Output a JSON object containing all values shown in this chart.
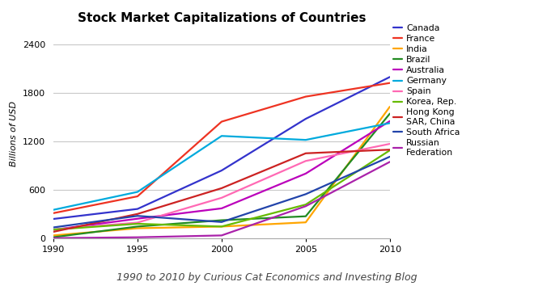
{
  "title": "Stock Market Capitalizations of Countries",
  "subtitle": "1990 to 2010 by Curious Cat Economics and Investing Blog",
  "ylabel": "Billions of USD",
  "years": [
    1990,
    1995,
    2000,
    2005,
    2010
  ],
  "series": [
    {
      "name": "Canada",
      "color": "#3333CC",
      "values": [
        242,
        366,
        842,
        1482,
        2000
      ]
    },
    {
      "name": "France",
      "color": "#EE3322",
      "values": [
        314,
        522,
        1447,
        1757,
        1926
      ]
    },
    {
      "name": "India",
      "color": "#FFA500",
      "values": [
        38,
        127,
        148,
        200,
        1632
      ]
    },
    {
      "name": "Brazil",
      "color": "#228B22",
      "values": [
        16,
        148,
        226,
        275,
        1546
      ]
    },
    {
      "name": "Australia",
      "color": "#BB00BB",
      "values": [
        108,
        245,
        373,
        804,
        1454
      ]
    },
    {
      "name": "Germany",
      "color": "#00AADD",
      "values": [
        355,
        577,
        1270,
        1221,
        1429
      ]
    },
    {
      "name": "Spain",
      "color": "#FF69B4",
      "values": [
        111,
        197,
        504,
        960,
        1172
      ]
    },
    {
      "name": "Korea, Rep.",
      "color": "#66BB00",
      "values": [
        110,
        182,
        148,
        420,
        1092
      ]
    },
    {
      "name": "Hong Kong\nSAR, China",
      "color": "#CC2222",
      "values": [
        83,
        304,
        623,
        1055,
        1100
      ]
    },
    {
      "name": "South Africa",
      "color": "#2244AA",
      "values": [
        137,
        280,
        204,
        549,
        1013
      ]
    },
    {
      "name": "Russian\nFederation",
      "color": "#AA22AA",
      "values": [
        5,
        15,
        38,
        400,
        949
      ]
    }
  ],
  "ylim": [
    0,
    2600
  ],
  "yticks": [
    0,
    600,
    1200,
    1800,
    2400
  ],
  "xlim": [
    1990,
    2010
  ],
  "xticks": [
    1990,
    1995,
    2000,
    2005,
    2010
  ],
  "background_color": "#FFFFFF",
  "grid_color": "#C8C8C8",
  "title_fontsize": 11,
  "label_fontsize": 8,
  "tick_fontsize": 8,
  "subtitle_fontsize": 9,
  "linewidth": 1.6
}
